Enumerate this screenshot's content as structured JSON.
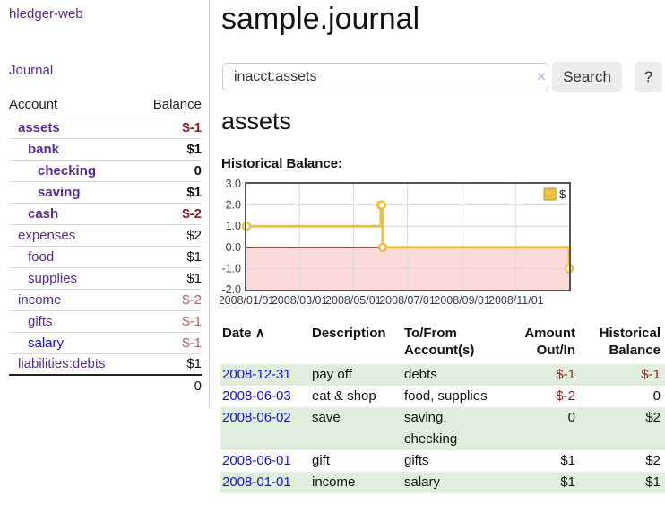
{
  "sidebar": {
    "brand": "hledger-web",
    "journal_link": "Journal",
    "accounts_table": {
      "account_header": "Account",
      "balance_header": "Balance",
      "rows": [
        {
          "name": "assets",
          "balance": "$-1"
        },
        {
          "name": "bank",
          "balance": "$1"
        },
        {
          "name": "checking",
          "balance": "0"
        },
        {
          "name": "saving",
          "balance": "$1"
        },
        {
          "name": "cash",
          "balance": "$-2"
        },
        {
          "name": "expenses",
          "balance": "$2"
        },
        {
          "name": "food",
          "balance": "$1"
        },
        {
          "name": "supplies",
          "balance": "$1"
        },
        {
          "name": "income",
          "balance": "$-2"
        },
        {
          "name": "gifts",
          "balance": "$-1"
        },
        {
          "name": "salary",
          "balance": "$-1"
        },
        {
          "name": "liabilities:debts",
          "balance": "$1"
        }
      ],
      "total": "0"
    }
  },
  "header": {
    "title": "sample.journal"
  },
  "search": {
    "value": "inacct:assets",
    "clear_icon": "×",
    "button_label": "Search",
    "help_label": "?"
  },
  "account_page": {
    "title": "assets",
    "chart_label": "Historical Balance:"
  },
  "chart_data": {
    "type": "line",
    "subtype": "step-after",
    "series": [
      {
        "name": "$",
        "color": "#edc240",
        "points": [
          [
            "2008-01-01",
            1
          ],
          [
            "2008-06-01",
            2
          ],
          [
            "2008-06-02",
            2
          ],
          [
            "2008-06-03",
            0
          ],
          [
            "2008-12-31",
            -1
          ]
        ]
      }
    ],
    "xlim": [
      "2008-01-01",
      "2008-12-31"
    ],
    "ylim": [
      -2,
      3
    ],
    "yticks": [
      3.0,
      2.0,
      1.0,
      0.0,
      -1.0,
      -2.0
    ],
    "xticks": [
      "2008/01/01",
      "2008/03/01",
      "2008/05/01",
      "2008/07/01",
      "2008/09/01",
      "2008/11/01"
    ],
    "legend": "$",
    "legend_position": "top-right",
    "grid": true,
    "negative_region_fill": "#fcdada",
    "zero_line_color": "#8b0000"
  },
  "register": {
    "headers": {
      "date": "Date",
      "sort_icon": "∧",
      "description": "Description",
      "account_line1": "To/From",
      "account_line2": "Account(s)",
      "amount_line1": "Amount",
      "amount_line2": "Out/In",
      "balance_line1": "Historical",
      "balance_line2": "Balance"
    },
    "rows": [
      {
        "date": "2008-12-31",
        "description": "pay off",
        "accounts": "debts",
        "amount": "$-1",
        "balance": "$-1"
      },
      {
        "date": "2008-06-03",
        "description": "eat & shop",
        "accounts": "food, supplies",
        "amount": "$-2",
        "balance": "0"
      },
      {
        "date": "2008-06-02",
        "description": "save",
        "accounts": "saving, checking",
        "amount": "0",
        "balance": "$2"
      },
      {
        "date": "2008-06-01",
        "description": "gift",
        "accounts": "gifts",
        "amount": "$1",
        "balance": "$2"
      },
      {
        "date": "2008-01-01",
        "description": "income",
        "accounts": "salary",
        "amount": "$1",
        "balance": "$1"
      }
    ]
  }
}
